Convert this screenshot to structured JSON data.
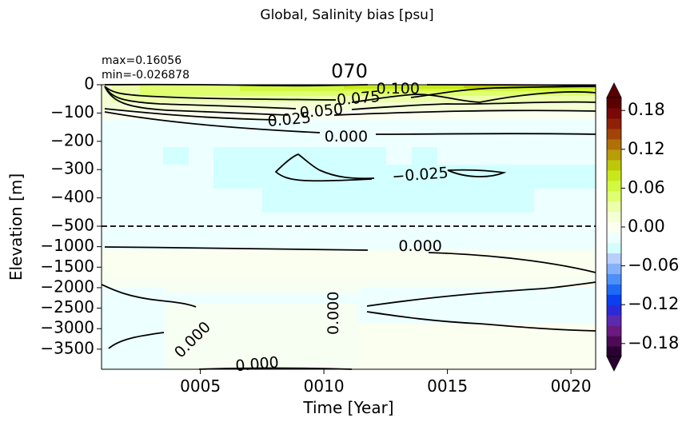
{
  "chart_data": {
    "type": "heatmap",
    "suptitle": "Global, Salinity bias [psu]",
    "title": "070",
    "stats": {
      "max": "max=0.16056",
      "min": "min=-0.026878"
    },
    "xlabel": "Time [Year]",
    "ylabel": "Elevation [m]",
    "xlim": [
      1,
      21
    ],
    "x_ticks": [
      {
        "value": 5,
        "label": "0005"
      },
      {
        "value": 10,
        "label": "0010"
      },
      {
        "value": 15,
        "label": "0015"
      },
      {
        "value": 20,
        "label": "0020"
      }
    ],
    "y_ticks_upper": [
      {
        "value": 0,
        "label": "0"
      },
      {
        "value": -100,
        "label": "−100"
      },
      {
        "value": -200,
        "label": "−200"
      },
      {
        "value": -300,
        "label": "−300"
      },
      {
        "value": -400,
        "label": "−400"
      },
      {
        "value": -500,
        "label": "−500"
      }
    ],
    "y_ticks_lower": [
      {
        "value": -1000,
        "label": "−1000"
      },
      {
        "value": -1500,
        "label": "−1500"
      },
      {
        "value": -2000,
        "label": "−2000"
      },
      {
        "value": -2500,
        "label": "−2500"
      },
      {
        "value": -3000,
        "label": "−3000"
      },
      {
        "value": -3500,
        "label": "−3500"
      }
    ],
    "upper_ylim": [
      -500,
      0
    ],
    "lower_ylim": [
      -3990,
      -500
    ],
    "colorbar": {
      "vmin": -0.2,
      "vmax": 0.2,
      "ticks": [
        {
          "value": 0.18,
          "label": "0.18"
        },
        {
          "value": 0.12,
          "label": "0.12"
        },
        {
          "value": 0.06,
          "label": "0.06"
        },
        {
          "value": 0.0,
          "label": "0.00"
        },
        {
          "value": -0.06,
          "label": "−0.06"
        },
        {
          "value": -0.12,
          "label": "−0.12"
        },
        {
          "value": -0.18,
          "label": "−0.18"
        }
      ],
      "colors": [
        "#2a0033",
        "#4d0a55",
        "#6a1a80",
        "#5b2ab0",
        "#2c2ad8",
        "#0a40f0",
        "#1e6af5",
        "#4f8ff8",
        "#86b0fa",
        "#b8cffc",
        "#d2ffff",
        "#eeffff",
        "#fbfff0",
        "#f4ffd4",
        "#ecffaa",
        "#e0ff70",
        "#d2f840",
        "#c8e81a",
        "#bcc808",
        "#b89c0a",
        "#b07008",
        "#a04408",
        "#902008",
        "#7a0808",
        "#5a0000"
      ]
    },
    "contour_labels": [
      {
        "text": "0.100",
        "x": 13.0,
        "y": -15,
        "panel": "upper",
        "angle": 0
      },
      {
        "text": "0.075",
        "x": 11.4,
        "y": -50,
        "panel": "upper",
        "angle": -5
      },
      {
        "text": "0.050",
        "x": 9.9,
        "y": -95,
        "panel": "upper",
        "angle": -5
      },
      {
        "text": "0.025",
        "x": 8.6,
        "y": -125,
        "panel": "upper",
        "angle": -5
      },
      {
        "text": "0.000",
        "x": 10.9,
        "y": -185,
        "panel": "upper",
        "angle": 0
      },
      {
        "text": "−0.025",
        "x": 13.9,
        "y": -320,
        "panel": "upper",
        "angle": -4
      },
      {
        "text": "0.000",
        "x": 13.9,
        "y": -1000,
        "panel": "lower",
        "angle": 0
      },
      {
        "text": "0.000",
        "x": 10.4,
        "y": -2620,
        "panel": "lower",
        "angle": -90
      },
      {
        "text": "0.000",
        "x": 4.7,
        "y": -3280,
        "panel": "lower",
        "angle": -45
      },
      {
        "text": "0.000",
        "x": 7.3,
        "y": -3880,
        "panel": "lower",
        "angle": -5
      }
    ]
  }
}
